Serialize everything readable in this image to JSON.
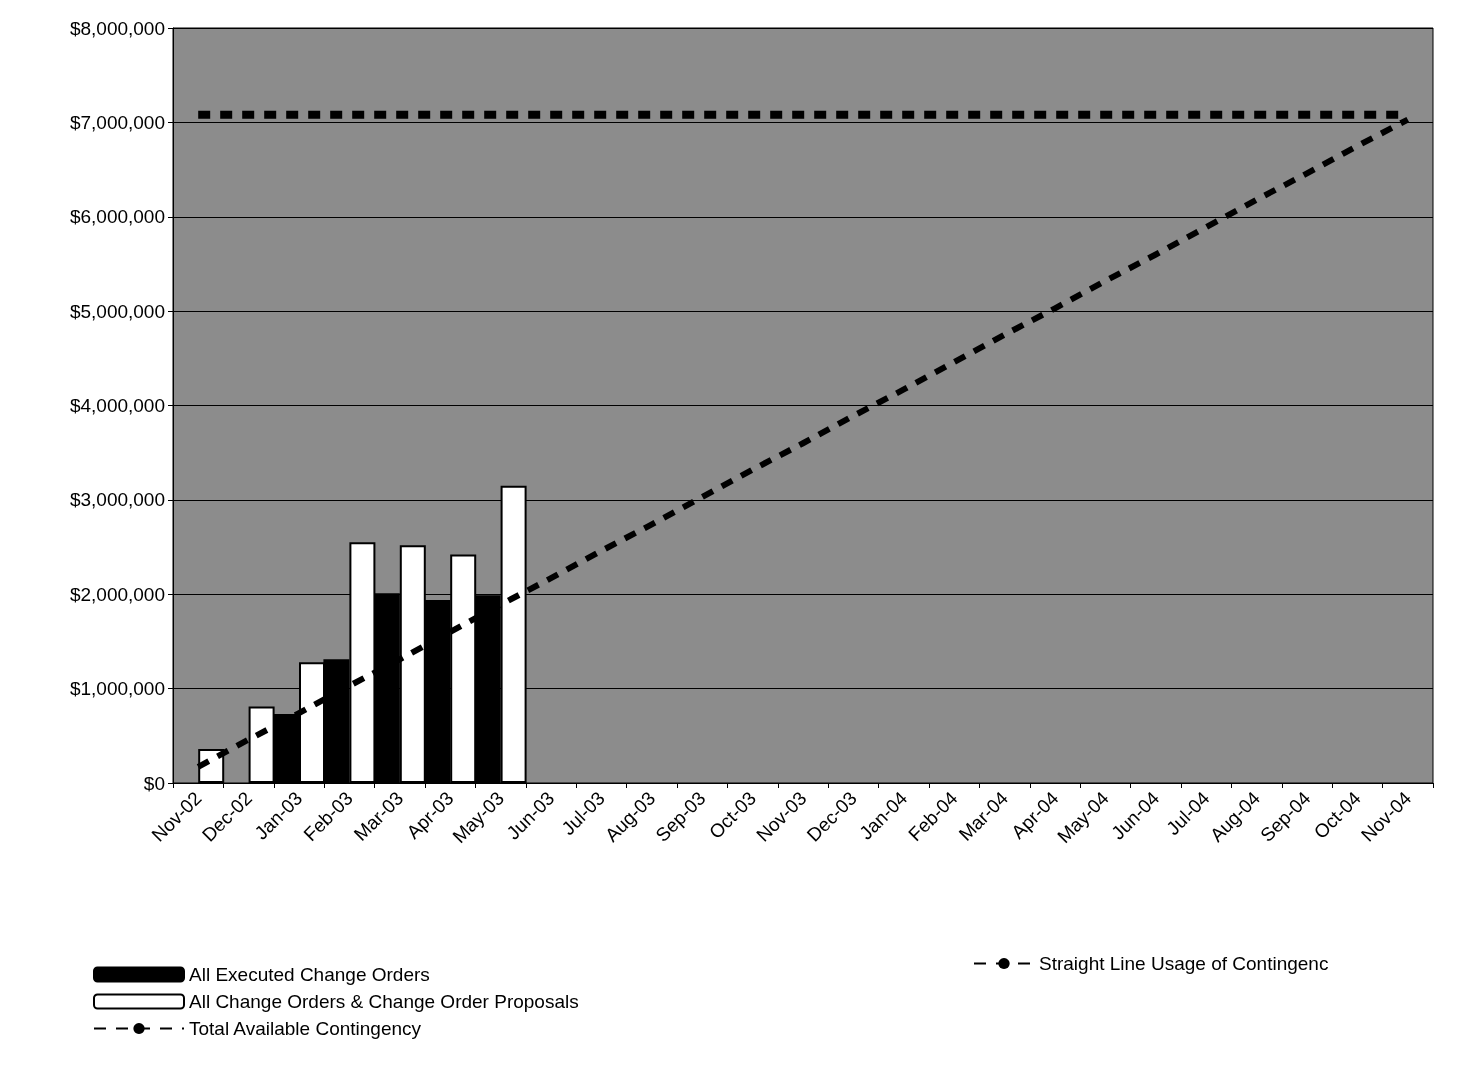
{
  "chart_data": {
    "type": "bar",
    "categories": [
      "Nov-02",
      "Dec-02",
      "Jan-03",
      "Feb-03",
      "Mar-03",
      "Apr-03",
      "May-03",
      "Jun-03",
      "Jul-03",
      "Aug-03",
      "Sep-03",
      "Oct-03",
      "Nov-03",
      "Dec-03",
      "Jan-04",
      "Feb-04",
      "Mar-04",
      "Apr-04",
      "May-04",
      "Jun-04",
      "Jul-04",
      "Aug-04",
      "Sep-04",
      "Oct-04",
      "Nov-04"
    ],
    "series": [
      {
        "name": "All Executed Change Orders",
        "color": "#000000",
        "values": [
          null,
          null,
          730000,
          1310000,
          2010000,
          1940000,
          1990000,
          null,
          null,
          null,
          null,
          null,
          null,
          null,
          null,
          null,
          null,
          null,
          null,
          null,
          null,
          null,
          null,
          null,
          null
        ]
      },
      {
        "name": "All Change Orders & Change Order Proposals",
        "color": "#ffffff",
        "values": [
          360000,
          810000,
          1280000,
          2550000,
          2520000,
          2420000,
          3150000,
          null,
          null,
          null,
          null,
          null,
          null,
          null,
          null,
          null,
          null,
          null,
          null,
          null,
          null,
          null,
          null,
          null,
          null
        ]
      },
      {
        "name": "Total Available Contingency",
        "type": "line",
        "color": "#000000",
        "values": [
          7080000,
          7080000,
          7080000,
          7080000,
          7080000,
          7080000,
          7080000,
          7080000,
          7080000,
          7080000,
          7080000,
          7080000,
          7080000,
          7080000,
          7080000,
          7080000,
          7080000,
          7080000,
          7080000,
          7080000,
          7080000,
          7080000,
          7080000,
          7080000,
          7080000
        ]
      },
      {
        "name": "Straight Line Usage of Contingenc",
        "type": "line",
        "color": "#000000",
        "values": [
          170000,
          460000,
          740000,
          1030000,
          1310000,
          1600000,
          1890000,
          2170000,
          2460000,
          2740000,
          3030000,
          3320000,
          3600000,
          3890000,
          4170000,
          4460000,
          4750000,
          5030000,
          5320000,
          5600000,
          5890000,
          6180000,
          6460000,
          6750000,
          7030000
        ]
      }
    ],
    "ylim": [
      0,
      8000000
    ],
    "yticks": [
      {
        "value": 0,
        "label": "$0"
      },
      {
        "value": 1000000,
        "label": "$1,000,000"
      },
      {
        "value": 2000000,
        "label": "$2,000,000"
      },
      {
        "value": 3000000,
        "label": "$3,000,000"
      },
      {
        "value": 4000000,
        "label": "$4,000,000"
      },
      {
        "value": 5000000,
        "label": "$5,000,000"
      },
      {
        "value": 6000000,
        "label": "$6,000,000"
      },
      {
        "value": 7000000,
        "label": "$7,000,000"
      },
      {
        "value": 8000000,
        "label": "$8,000,000"
      }
    ],
    "grid": "y",
    "legend": "bottom",
    "line_style": "dashed",
    "marker": "none"
  }
}
